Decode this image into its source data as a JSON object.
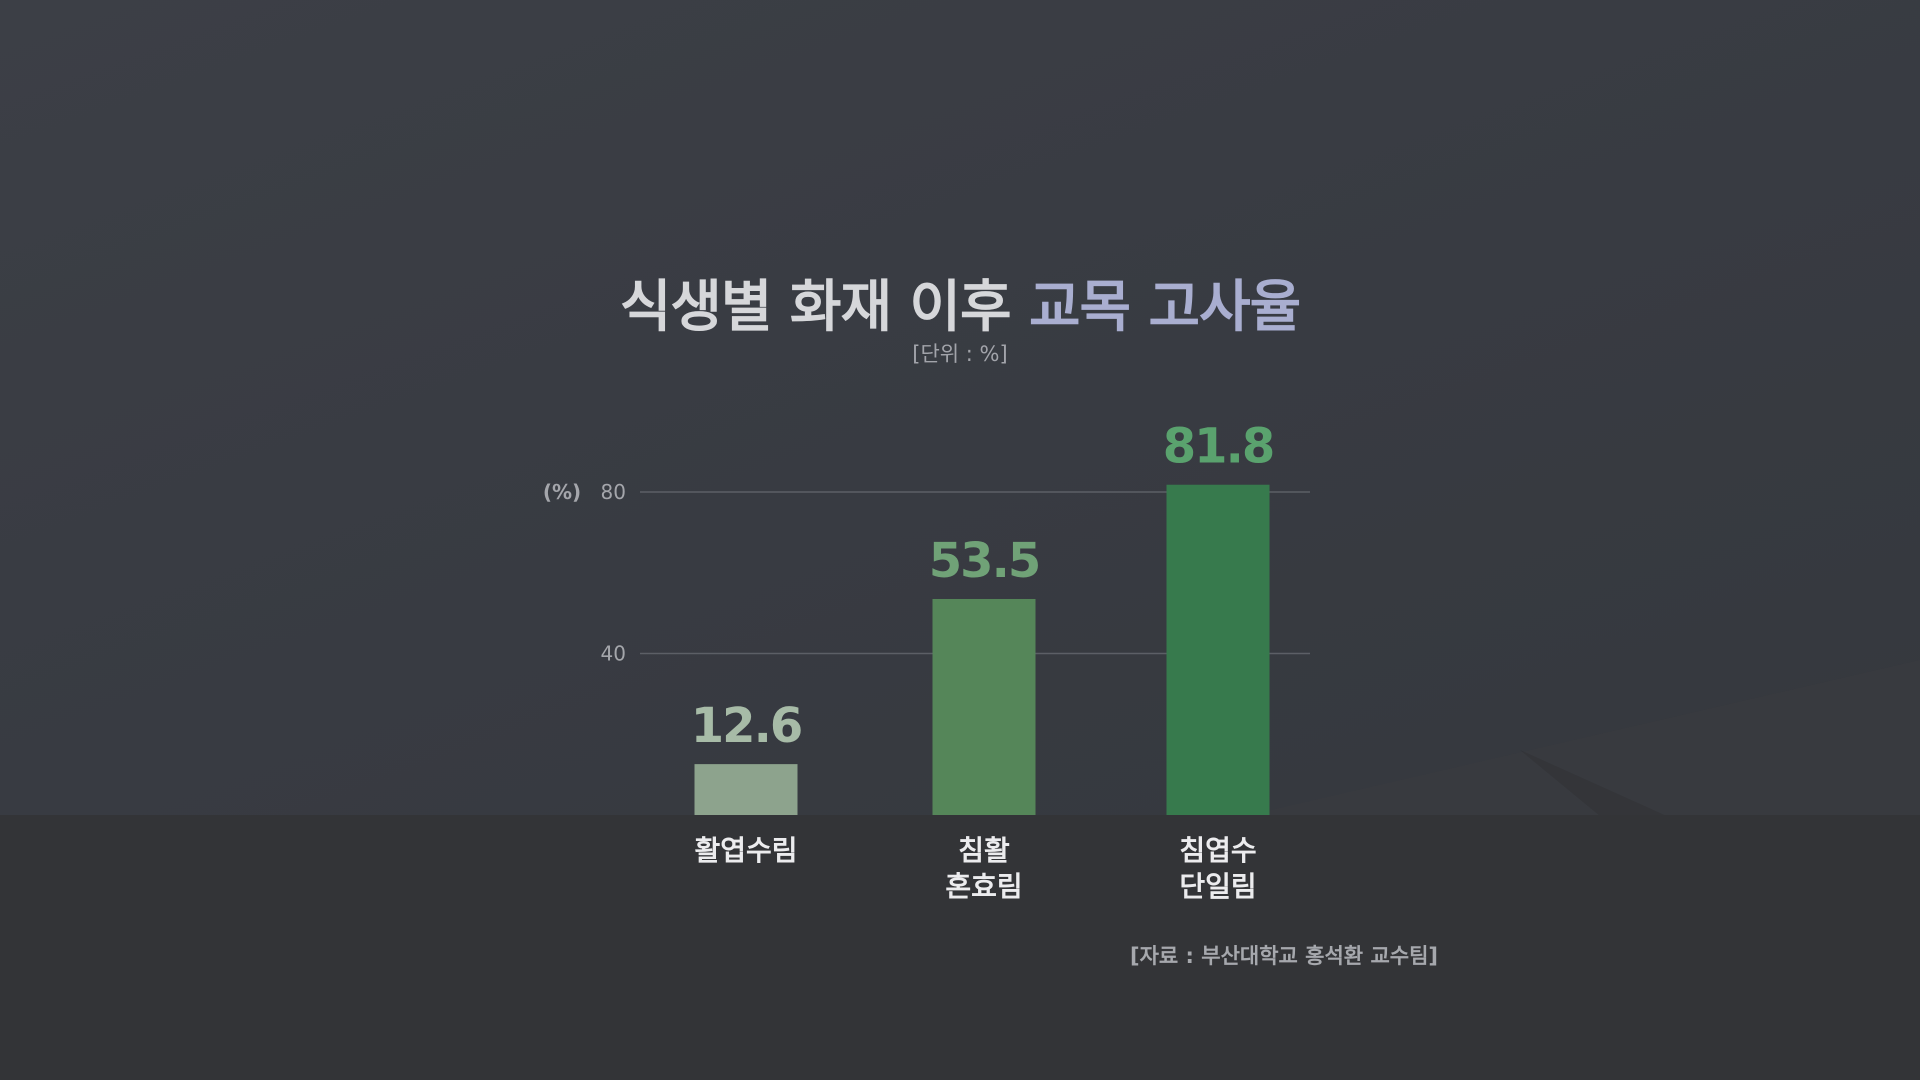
{
  "title": {
    "part1": "식생별 화재 이후",
    "part2": "교목 고사율"
  },
  "unit_note": "[단위 : %]",
  "source_note": "[자료 : 부산대학교 홍석환 교수팀]",
  "colors": {
    "title_text": "#d6d7da",
    "title_highlight": "#a9aed0",
    "background": "#3a3d44",
    "base_band": "#333437"
  },
  "chart_data": {
    "type": "bar",
    "ylabel": "(%)",
    "ylim": [
      0,
      80
    ],
    "yticks": [
      40,
      80
    ],
    "grid": true,
    "categories": [
      [
        "활엽수림"
      ],
      [
        "침활",
        "혼효림"
      ],
      [
        "침엽수",
        "단일림"
      ]
    ],
    "values": [
      12.6,
      53.5,
      81.8
    ],
    "value_labels": [
      "12.6",
      "53.5",
      "81.8"
    ],
    "bar_colors": [
      "#8da38d",
      "#558659",
      "#377a4d"
    ],
    "label_colors": [
      "#a7bba7",
      "#70a277",
      "#5aa26e"
    ]
  }
}
